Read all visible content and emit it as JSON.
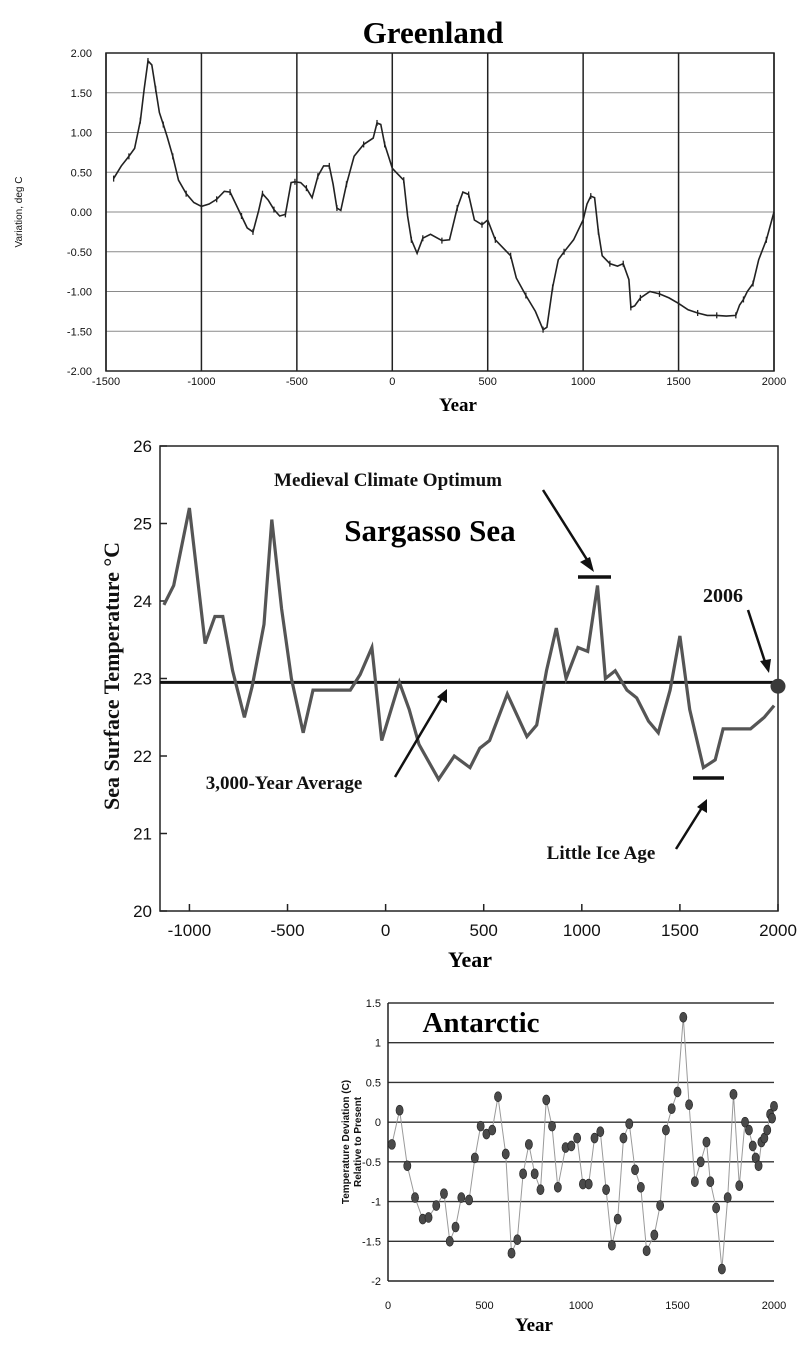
{
  "chart_data": [
    {
      "type": "line",
      "title": "Greenland",
      "xlabel": "Year",
      "ylabel": "Variation, deg C",
      "xlim": [
        -1500,
        2000
      ],
      "ylim": [
        -2.0,
        2.0
      ],
      "grid": true,
      "x_ticks": [
        "-1500",
        "-1000",
        "-500",
        "0",
        "500",
        "1000",
        "1500",
        "2000"
      ],
      "y_ticks": [
        "2.00",
        "1.50",
        "1.00",
        "0.50",
        "0.00",
        "-0.50",
        "-1.00",
        "-1.50",
        "-2.00"
      ],
      "series": [
        {
          "x": [
            -1460,
            -1420,
            -1380,
            -1350,
            -1320,
            -1300,
            -1280,
            -1260,
            -1240,
            -1220,
            -1200,
            -1180,
            -1150,
            -1120,
            -1080,
            -1040,
            -1000,
            -960,
            -920,
            -880,
            -850,
            -820,
            -790,
            -760,
            -730,
            -700,
            -680,
            -650,
            -620,
            -590,
            -560,
            -530,
            -510,
            -480,
            -450,
            -420,
            -390,
            -360,
            -330,
            -310,
            -290,
            -270,
            -240,
            -200,
            -150,
            -100,
            -80,
            -60,
            -40,
            -20,
            0,
            20,
            60,
            80,
            100,
            130,
            160,
            200,
            260,
            300,
            340,
            370,
            400,
            430,
            470,
            500,
            540,
            580,
            620,
            650,
            700,
            750,
            790,
            810,
            840,
            870,
            900,
            950,
            1000,
            1020,
            1040,
            1060,
            1080,
            1100,
            1140,
            1180,
            1210,
            1240,
            1250,
            1270,
            1300,
            1350,
            1400,
            1450,
            1500,
            1550,
            1600,
            1650,
            1700,
            1750,
            1800,
            1820,
            1840,
            1860,
            1890,
            1920,
            1960,
            2000
          ],
          "y": [
            0.42,
            0.58,
            0.7,
            0.8,
            1.15,
            1.55,
            1.9,
            1.85,
            1.55,
            1.25,
            1.1,
            0.95,
            0.7,
            0.4,
            0.23,
            0.12,
            0.07,
            0.1,
            0.16,
            0.26,
            0.25,
            0.1,
            -0.05,
            -0.2,
            -0.25,
            0.02,
            0.23,
            0.15,
            0.03,
            -0.05,
            -0.03,
            0.37,
            0.38,
            0.37,
            0.3,
            0.18,
            0.45,
            0.58,
            0.58,
            0.35,
            0.05,
            0.02,
            0.35,
            0.7,
            0.85,
            0.93,
            1.12,
            1.1,
            0.85,
            0.7,
            0.55,
            0.5,
            0.4,
            -0.05,
            -0.35,
            -0.52,
            -0.33,
            -0.28,
            -0.36,
            -0.35,
            0.05,
            0.25,
            0.22,
            -0.1,
            -0.16,
            -0.1,
            -0.35,
            -0.45,
            -0.55,
            -0.83,
            -1.05,
            -1.25,
            -1.48,
            -1.45,
            -0.95,
            -0.6,
            -0.5,
            -0.35,
            -0.1,
            0.1,
            0.2,
            0.18,
            -0.25,
            -0.55,
            -0.65,
            -0.68,
            -0.65,
            -0.85,
            -1.2,
            -1.18,
            -1.08,
            -1.0,
            -1.03,
            -1.08,
            -1.15,
            -1.23,
            -1.27,
            -1.3,
            -1.3,
            -1.31,
            -1.3,
            -1.17,
            -1.1,
            -1.0,
            -0.9,
            -0.6,
            -0.35,
            0.0
          ]
        }
      ]
    },
    {
      "type": "line",
      "title": "Sargasso Sea",
      "xlabel": "Year",
      "ylabel": "Sea Surface Temperature °C",
      "xlim": [
        -1150,
        2000
      ],
      "ylim": [
        20,
        26
      ],
      "grid": false,
      "x_ticks": [
        "-1000",
        "-500",
        "0",
        "500",
        "1000",
        "1500",
        "2000"
      ],
      "y_ticks": [
        "26",
        "25",
        "24",
        "23",
        "22",
        "21",
        "20"
      ],
      "average_line": 22.95,
      "annotations": [
        "Medieval Climate Optimum",
        "2006",
        "3,000-Year Average",
        "Little Ice Age"
      ],
      "series": [
        {
          "x": [
            -1130,
            -1080,
            -1000,
            -920,
            -870,
            -830,
            -780,
            -720,
            -680,
            -620,
            -580,
            -530,
            -480,
            -420,
            -370,
            -300,
            -240,
            -180,
            -130,
            -70,
            -20,
            70,
            120,
            170,
            270,
            350,
            430,
            480,
            530,
            620,
            720,
            770,
            820,
            870,
            920,
            980,
            1030,
            1080,
            1120,
            1170,
            1230,
            1280,
            1340,
            1390,
            1450,
            1500,
            1550,
            1620,
            1680,
            1720,
            1790,
            1860,
            1930,
            1980
          ],
          "y": [
            23.95,
            24.2,
            25.2,
            23.45,
            23.8,
            23.8,
            23.1,
            22.5,
            22.9,
            23.7,
            25.05,
            23.9,
            23.0,
            22.3,
            22.85,
            22.85,
            22.85,
            22.85,
            23.05,
            23.4,
            22.2,
            22.95,
            22.6,
            22.15,
            21.7,
            22.0,
            21.85,
            22.1,
            22.2,
            22.8,
            22.25,
            22.4,
            23.1,
            23.65,
            23.0,
            23.4,
            23.35,
            24.2,
            23.0,
            23.1,
            22.85,
            22.75,
            22.45,
            22.3,
            22.85,
            23.55,
            22.6,
            21.85,
            21.95,
            22.35,
            22.35,
            22.35,
            22.5,
            22.65
          ]
        }
      ],
      "points": [
        {
          "x": 2000,
          "y": 22.9,
          "label": "2006"
        }
      ]
    },
    {
      "type": "scatter",
      "title": "Antarctic",
      "xlabel": "Year",
      "ylabel": "Temperature Deviation (C) Relative to Present",
      "xlim": [
        0,
        2000
      ],
      "ylim": [
        -2,
        1.5
      ],
      "grid": true,
      "x_ticks": [
        "0",
        "500",
        "1000",
        "1500",
        "2000"
      ],
      "y_ticks": [
        "1.5",
        "1",
        "0.5",
        "0",
        "-0.5",
        "-1",
        "-1.5",
        "-2"
      ],
      "series": [
        {
          "x": [
            20,
            60,
            100,
            140,
            180,
            210,
            250,
            290,
            320,
            350,
            380,
            420,
            450,
            480,
            510,
            540,
            570,
            610,
            640,
            670,
            700,
            730,
            760,
            790,
            820,
            850,
            880,
            920,
            950,
            980,
            1010,
            1040,
            1070,
            1100,
            1130,
            1160,
            1190,
            1220,
            1250,
            1280,
            1310,
            1340,
            1380,
            1410,
            1440,
            1470,
            1500,
            1530,
            1560,
            1590,
            1620,
            1650,
            1670,
            1700,
            1730,
            1760,
            1790,
            1820,
            1850,
            1870,
            1890,
            1905,
            1920,
            1935,
            1950,
            1965,
            1980,
            1990,
            2000
          ],
          "y": [
            -0.28,
            0.15,
            -0.55,
            -0.95,
            -1.22,
            -1.2,
            -1.05,
            -0.9,
            -1.5,
            -1.32,
            -0.95,
            -0.98,
            -0.45,
            -0.05,
            -0.15,
            -0.1,
            0.32,
            -0.4,
            -1.65,
            -1.48,
            -0.65,
            -0.28,
            -0.65,
            -0.85,
            0.28,
            -0.05,
            -0.82,
            -0.32,
            -0.3,
            -0.2,
            -0.78,
            -0.78,
            -0.2,
            -0.12,
            -0.85,
            -1.55,
            -1.22,
            -0.2,
            -0.02,
            -0.6,
            -0.82,
            -1.62,
            -1.42,
            -1.05,
            -0.1,
            0.17,
            0.38,
            1.32,
            0.22,
            -0.75,
            -0.5,
            -0.25,
            -0.75,
            -1.08,
            -1.85,
            -0.95,
            0.35,
            -0.8,
            0.0,
            -0.1,
            -0.3,
            -0.45,
            -0.55,
            -0.25,
            -0.2,
            -0.1,
            0.1,
            0.05,
            0.2
          ]
        }
      ]
    }
  ]
}
